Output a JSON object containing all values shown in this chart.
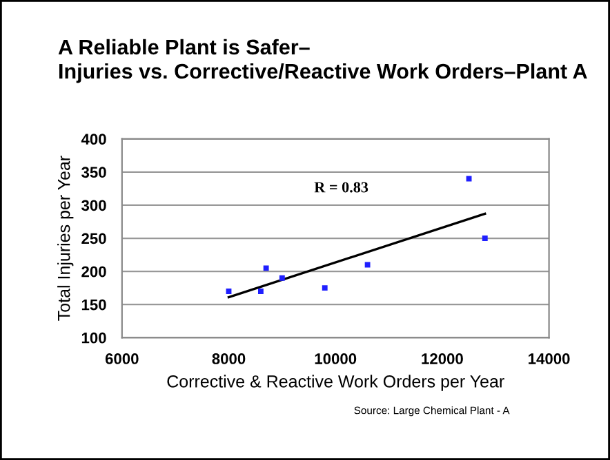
{
  "chart_data": {
    "type": "scatter",
    "title": "A Reliable Plant is Safer–\nInjuries vs. Corrective/Reactive Work Orders–Plant A",
    "xlabel": "Corrective & Reactive Work Orders per Year",
    "ylabel": "Total Injuries per Year",
    "series": [
      {
        "color": "#1f1fff",
        "marker": "square",
        "x": [
          8000,
          8600,
          8700,
          9000,
          9800,
          10600,
          12500,
          12800
        ],
        "values": [
          170,
          170,
          205,
          190,
          175,
          210,
          340,
          250
        ]
      },
      {
        "type": "line",
        "color": "#000000",
        "marker": "none",
        "x": [
          8000,
          12800
        ],
        "values": [
          161,
          287
        ]
      }
    ],
    "annotations": [
      "R = 0.83",
      "Source: Large Chemical Plant - A"
    ],
    "xlim": [
      6000,
      14000
    ],
    "xticks": [
      6000,
      8000,
      10000,
      12000,
      14000
    ],
    "ylim": [
      100,
      400
    ],
    "yticks": [
      100,
      150,
      200,
      250,
      300,
      350,
      400
    ],
    "grid": "y",
    "legend": false
  }
}
